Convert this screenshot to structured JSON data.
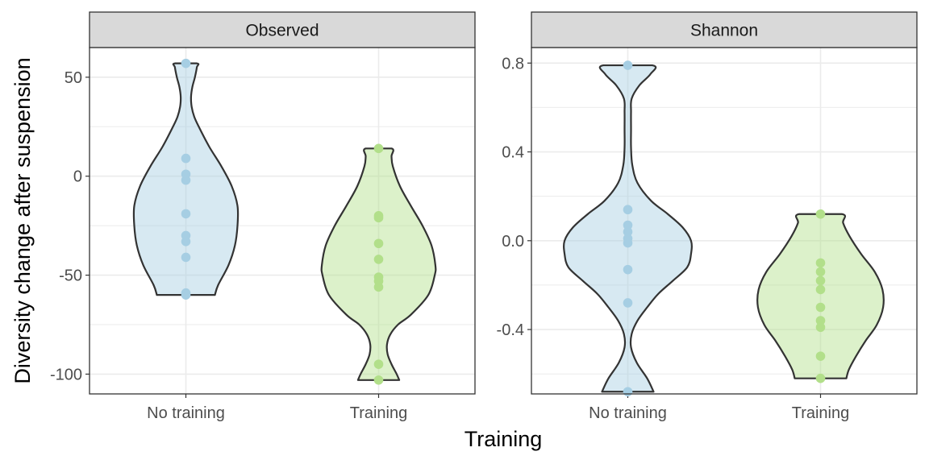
{
  "chart_data": {
    "type": "violin",
    "xlabel": "Training",
    "ylabel": "Diversity change after suspension",
    "categories": [
      "No training",
      "Training"
    ],
    "colors": {
      "No training": "#a6cee3",
      "Training": "#b2df8a"
    },
    "grid": true,
    "legend": "none",
    "panels": [
      {
        "title": "Observed",
        "ylim": [
          -110,
          65
        ],
        "yticks": [
          50,
          0,
          -50,
          -100
        ],
        "ytick_labels": [
          "50",
          "0",
          "-50",
          "-100"
        ],
        "points": {
          "No training": [
            57,
            9,
            1,
            -2,
            -19,
            -30,
            -33,
            -41,
            -59,
            -60
          ],
          "Training": [
            14,
            -20,
            -21,
            -34,
            -42,
            -51,
            -53,
            -56,
            -95,
            -103
          ]
        },
        "violins": {
          "No training": {
            "min": -60,
            "max": 57,
            "y": [
              -60,
              -55,
              -45,
              -35,
              -25,
              -15,
              -5,
              5,
              15,
              25,
              30,
              35,
              40,
              45,
              50,
              55,
              57
            ],
            "w": [
              0.45,
              0.5,
              0.66,
              0.76,
              0.8,
              0.8,
              0.71,
              0.55,
              0.36,
              0.2,
              0.13,
              0.09,
              0.08,
              0.1,
              0.14,
              0.17,
              0.17
            ]
          },
          "Training": {
            "min": -103,
            "max": 14,
            "y": [
              -103,
              -100,
              -95,
              -90,
              -85,
              -80,
              -75,
              -70,
              -60,
              -50,
              -45,
              -35,
              -25,
              -15,
              -5,
              5,
              10,
              14
            ],
            "w": [
              0.32,
              0.28,
              0.2,
              0.14,
              0.13,
              0.18,
              0.3,
              0.5,
              0.77,
              0.87,
              0.88,
              0.82,
              0.68,
              0.5,
              0.33,
              0.22,
              0.2,
              0.2
            ]
          }
        }
      },
      {
        "title": "Shannon",
        "ylim": [
          -0.69,
          0.87
        ],
        "yticks": [
          0.8,
          0.4,
          0.0,
          -0.4
        ],
        "ytick_labels": [
          "0.8",
          "0.4",
          "0.0",
          "-0.4"
        ],
        "points": {
          "No training": [
            0.79,
            0.14,
            0.07,
            0.04,
            0.01,
            -0.01,
            -0.13,
            -0.28,
            -0.68
          ],
          "Training": [
            0.12,
            -0.1,
            -0.14,
            -0.18,
            -0.22,
            -0.3,
            -0.36,
            -0.39,
            -0.52,
            -0.62
          ]
        },
        "violins": {
          "No training": {
            "min": -0.68,
            "max": 0.79,
            "y": [
              -0.68,
              -0.62,
              -0.55,
              -0.48,
              -0.42,
              -0.36,
              -0.3,
              -0.24,
              -0.18,
              -0.12,
              -0.06,
              0.0,
              0.06,
              0.12,
              0.18,
              0.26,
              0.34,
              0.42,
              0.5,
              0.58,
              0.64,
              0.7,
              0.75,
              0.79
            ],
            "w": [
              0.4,
              0.3,
              0.14,
              0.05,
              0.06,
              0.15,
              0.3,
              0.47,
              0.7,
              0.92,
              0.98,
              0.98,
              0.85,
              0.62,
              0.36,
              0.15,
              0.07,
              0.05,
              0.05,
              0.05,
              0.06,
              0.18,
              0.35,
              0.38
            ]
          },
          "Training": {
            "min": -0.62,
            "max": 0.12,
            "y": [
              -0.62,
              -0.58,
              -0.52,
              -0.45,
              -0.38,
              -0.3,
              -0.22,
              -0.14,
              -0.06,
              0.02,
              0.08,
              0.12
            ],
            "w": [
              0.4,
              0.44,
              0.55,
              0.7,
              0.87,
              0.97,
              0.96,
              0.84,
              0.63,
              0.45,
              0.35,
              0.33
            ]
          }
        }
      }
    ]
  }
}
